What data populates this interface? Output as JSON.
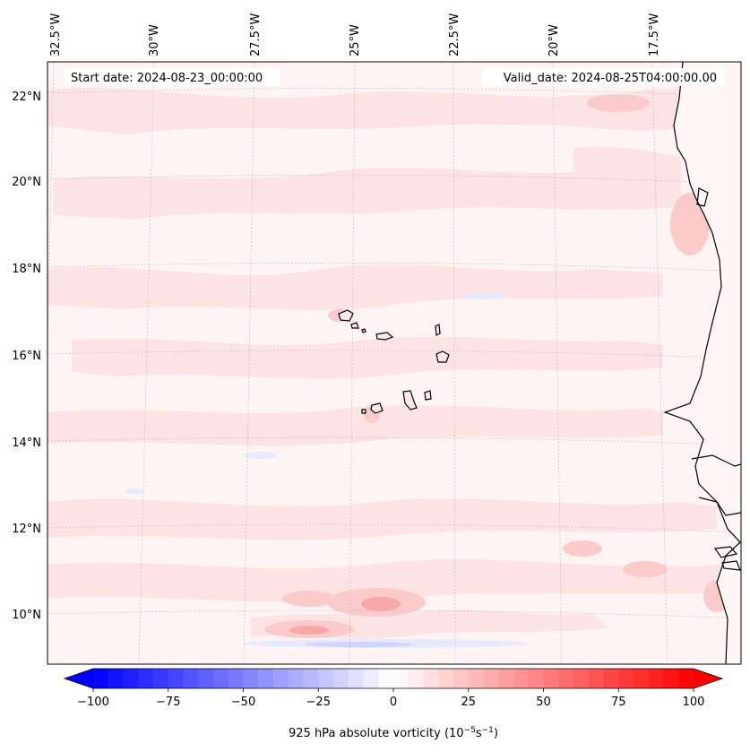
{
  "header": {
    "start_date": "Start date: 2024-08-23_00:00:00",
    "valid_date": "Valid_date: 2024-08-25T04:00:00.00"
  },
  "axes": {
    "lon_labels": [
      "32.5°W",
      "30°W",
      "27.5°W",
      "25°W",
      "22.5°W",
      "20°W",
      "17.5°W"
    ],
    "lat_labels": [
      "22°N",
      "20°N",
      "18°N",
      "16°N",
      "14°N",
      "12°N",
      "10°N"
    ]
  },
  "colorbar": {
    "label_prefix": "925 hPa absolute vorticity (10",
    "label_exp1": "−5",
    "label_mid": "s",
    "label_exp2": "−1",
    "label_suffix": ")",
    "ticks": [
      "−100",
      "−75",
      "−50",
      "−25",
      "0",
      "25",
      "50",
      "75",
      "100"
    ],
    "vmin": -100,
    "vmax": 100,
    "levels": 40,
    "color_low": "#0000ff",
    "color_mid": "#ffffff",
    "color_high": "#ff0000"
  },
  "colors": {
    "field_background": "#fff4f4",
    "weak_positive": "#fde3e3",
    "moderate_positive": "#fbcaca",
    "strong_positive": "#f6a8a8",
    "weak_negative": "#eef0ff",
    "land": "#ffffff"
  }
}
